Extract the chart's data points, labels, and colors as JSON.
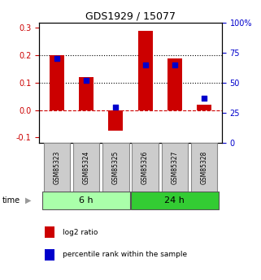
{
  "title": "GDS1929 / 15077",
  "samples": [
    "GSM85323",
    "GSM85324",
    "GSM85325",
    "GSM85326",
    "GSM85327",
    "GSM85328"
  ],
  "log2_ratio": [
    0.2,
    0.12,
    -0.075,
    0.29,
    0.19,
    0.02
  ],
  "percentile_rank": [
    70,
    52,
    30,
    65,
    65,
    37
  ],
  "groups": [
    {
      "label": "6 h",
      "indices": [
        0,
        1,
        2
      ],
      "color": "#aaffaa"
    },
    {
      "label": "24 h",
      "indices": [
        3,
        4,
        5
      ],
      "color": "#33cc33"
    }
  ],
  "bar_color": "#cc0000",
  "dot_color": "#0000cc",
  "ylim_left": [
    -0.12,
    0.32
  ],
  "yticks_left": [
    -0.1,
    0.0,
    0.1,
    0.2,
    0.3
  ],
  "ylim_right": [
    0,
    100
  ],
  "yticks_right": [
    0,
    25,
    50,
    75,
    100
  ],
  "yticklabels_right": [
    "0",
    "25",
    "50",
    "75",
    "100%"
  ],
  "hlines_dotted": [
    0.1,
    0.2
  ],
  "hline_dashed": 0.0,
  "bg_color": "#ffffff",
  "plot_bg": "#ffffff",
  "bar_width": 0.5,
  "dot_size": 25,
  "legend_labels": [
    "log2 ratio",
    "percentile rank within the sample"
  ],
  "time_label": "time"
}
